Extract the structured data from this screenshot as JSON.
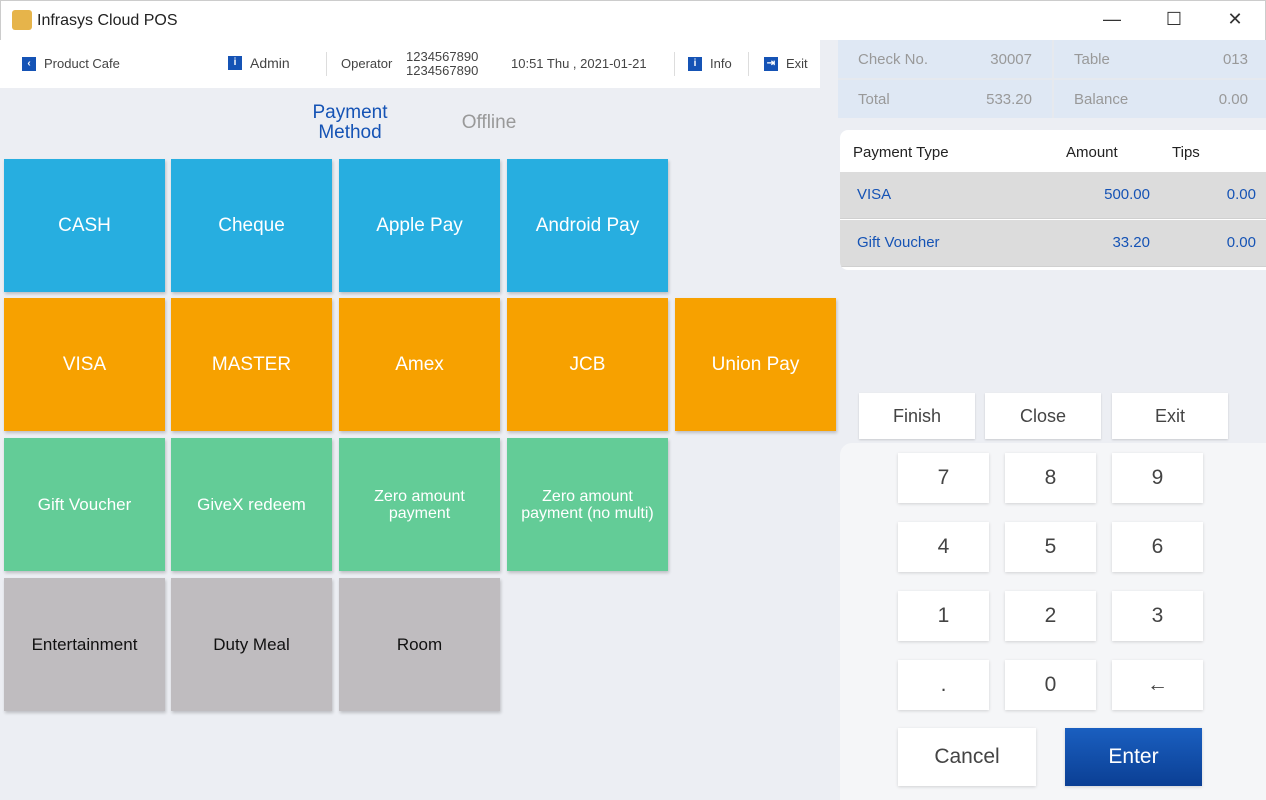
{
  "window": {
    "title": "Infrasys Cloud POS",
    "minimize": "—",
    "maximize": "☐",
    "close": "✕"
  },
  "header": {
    "outlet": "Product Cafe",
    "user": "Admin",
    "operator_label": "Operator",
    "operator_id_1": "1234567890",
    "operator_id_2": "1234567890",
    "datetime": "10:51 Thu , 2021-01-21",
    "info": "Info",
    "exit": "Exit"
  },
  "tabs": [
    {
      "label": "Payment Method",
      "active": true
    },
    {
      "label": "Offline",
      "active": false
    }
  ],
  "payment_buttons": [
    {
      "label": "CASH",
      "color": "#27aee0"
    },
    {
      "label": "Cheque",
      "color": "#27aee0"
    },
    {
      "label": "Apple Pay",
      "color": "#27aee0"
    },
    {
      "label": "Android Pay",
      "color": "#27aee0"
    },
    {
      "label": "VISA",
      "color": "#f7a100"
    },
    {
      "label": "MASTER",
      "color": "#f7a100"
    },
    {
      "label": "Amex",
      "color": "#f7a100"
    },
    {
      "label": "JCB",
      "color": "#f7a100"
    },
    {
      "label": "Union Pay",
      "color": "#f7a100"
    },
    {
      "label": "Gift Voucher",
      "color": "#63cc97"
    },
    {
      "label": "GiveX redeem",
      "color": "#63cc97"
    },
    {
      "label": "Zero amount payment",
      "color": "#63cc97"
    },
    {
      "label": "Zero amount payment (no multi)",
      "color": "#63cc97"
    },
    {
      "label": "Entertainment",
      "color": "#bfbcbf"
    },
    {
      "label": "Duty Meal",
      "color": "#bfbcbf"
    },
    {
      "label": "Room",
      "color": "#bfbcbf"
    }
  ],
  "check": {
    "check_no_label": "Check No.",
    "check_no": "30007",
    "table_label": "Table",
    "table": "013",
    "total_label": "Total",
    "total": "533.20",
    "balance_label": "Balance",
    "balance": "0.00"
  },
  "payments": {
    "headers": [
      "Payment Type",
      "Amount",
      "Tips"
    ],
    "rows": [
      {
        "type": "VISA",
        "amount": "500.00",
        "tips": "0.00"
      },
      {
        "type": "Gift Voucher",
        "amount": "33.20",
        "tips": "0.00"
      }
    ]
  },
  "actions": {
    "finish": "Finish",
    "close": "Close",
    "exit": "Exit"
  },
  "keypad": {
    "keys": [
      "7",
      "8",
      "9",
      "4",
      "5",
      "6",
      "1",
      "2",
      "3",
      ".",
      "0",
      "←"
    ],
    "cancel": "Cancel",
    "enter": "Enter"
  }
}
